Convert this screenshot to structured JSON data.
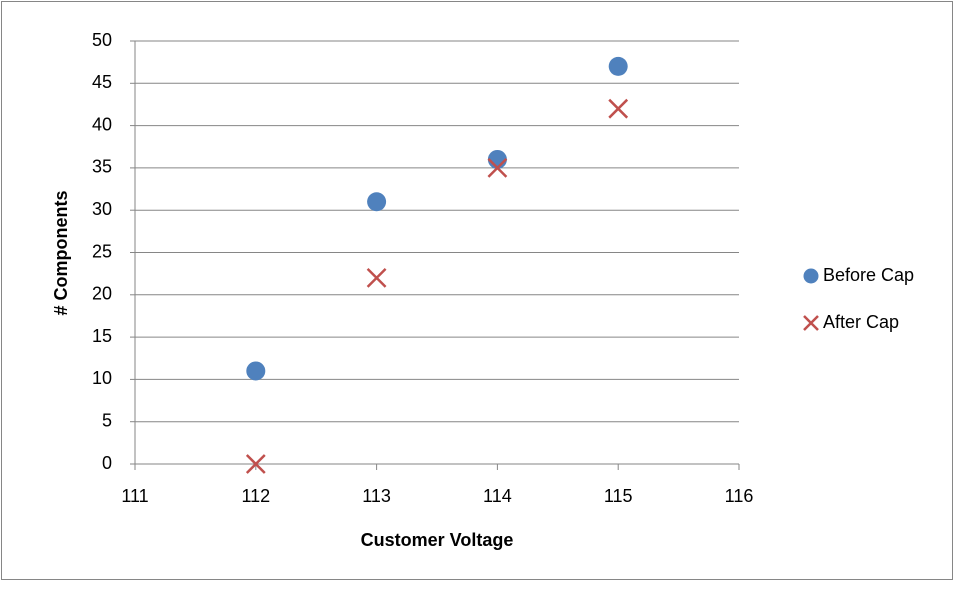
{
  "chart_data": {
    "type": "scatter",
    "x_label": "Customer Voltage",
    "y_label": "# Components",
    "series": [
      {
        "name": "Before Cap",
        "color": "#4f81bd",
        "marker": "circle",
        "x": [
          112,
          113,
          114,
          115
        ],
        "values": [
          11,
          31,
          36,
          47
        ]
      },
      {
        "name": "After Cap",
        "color": "#c0504d",
        "marker": "x",
        "x": [
          112,
          113,
          114,
          115
        ],
        "values": [
          0,
          22,
          35,
          42
        ]
      }
    ],
    "xlim": [
      111,
      116
    ],
    "xticks": [
      111,
      112,
      113,
      114,
      115,
      116
    ],
    "ylim": [
      0,
      50
    ],
    "yticks": [
      0,
      5,
      10,
      15,
      20,
      25,
      30,
      35,
      40,
      45,
      50
    ],
    "grid": true,
    "legend": "right"
  }
}
